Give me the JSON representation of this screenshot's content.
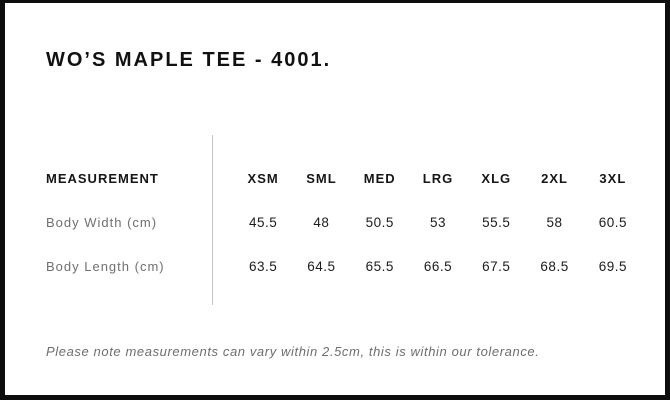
{
  "header": {
    "title": "WO’S MAPLE TEE - 4001."
  },
  "table": {
    "measurement_header": "MEASUREMENT",
    "size_headers": [
      "XSM",
      "SML",
      "MED",
      "LRG",
      "XLG",
      "2XL",
      "3XL"
    ],
    "rows": [
      {
        "label": "Body Width (cm)",
        "values": [
          "45.5",
          "48",
          "50.5",
          "53",
          "55.5",
          "58",
          "60.5"
        ]
      },
      {
        "label": "Body Length (cm)",
        "values": [
          "63.5",
          "64.5",
          "65.5",
          "66.5",
          "67.5",
          "68.5",
          "69.5"
        ]
      }
    ]
  },
  "footer": {
    "note": "Please note measurements can vary within 2.5cm, this is within our tolerance."
  },
  "colors": {
    "background": "#ffffff",
    "border": "#0d0d0d",
    "text": "#161616",
    "muted_text": "#707070",
    "divider": "#c4c4c4"
  }
}
